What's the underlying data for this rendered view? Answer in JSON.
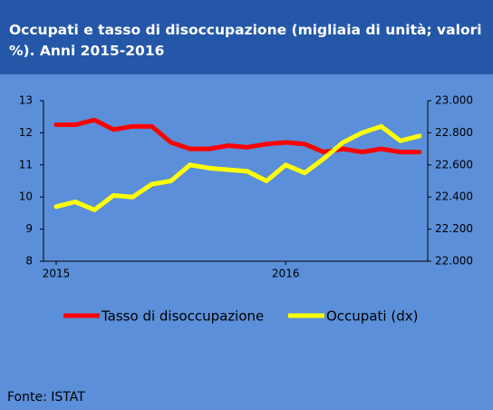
{
  "chart_data": {
    "type": "line",
    "title": "Occupati e tasso di disoccupazione (migliaia di unità; valori %). Anni 2015-2016",
    "categories": [
      "2015",
      null,
      null,
      null,
      null,
      null,
      null,
      null,
      null,
      null,
      null,
      null,
      "2016",
      null,
      null,
      null,
      null,
      null,
      null,
      null
    ],
    "series": [
      {
        "name": "Tasso di disoccupazione",
        "color": "#ff0000",
        "axis": "y",
        "values": [
          12.25,
          12.25,
          12.4,
          12.1,
          12.2,
          12.2,
          11.7,
          11.5,
          11.5,
          11.6,
          11.55,
          11.65,
          11.7,
          11.65,
          11.4,
          11.5,
          11.4,
          11.5,
          11.4,
          11.4
        ]
      },
      {
        "name": "Occupati (dx)",
        "color": "#ffff00",
        "axis": "y2",
        "values": [
          22340,
          22370,
          22320,
          22410,
          22400,
          22480,
          22500,
          22600,
          22580,
          22570,
          22560,
          22500,
          22600,
          22550,
          22640,
          22740,
          22800,
          22840,
          22750,
          22780
        ]
      }
    ],
    "ylim": [
      8,
      13
    ],
    "yticks": [
      8,
      9,
      10,
      11,
      12,
      13
    ],
    "y2lim": [
      22000,
      23000
    ],
    "y2ticks": [
      {
        "value": 22000,
        "label": "22.000"
      },
      {
        "value": 22200,
        "label": "22.200"
      },
      {
        "value": 22400,
        "label": "22.400"
      },
      {
        "value": 22600,
        "label": "22.600"
      },
      {
        "value": 22800,
        "label": "22.800"
      },
      {
        "value": 23000,
        "label": "23.000"
      }
    ],
    "grid": false,
    "source": "Fonte: ISTAT"
  }
}
